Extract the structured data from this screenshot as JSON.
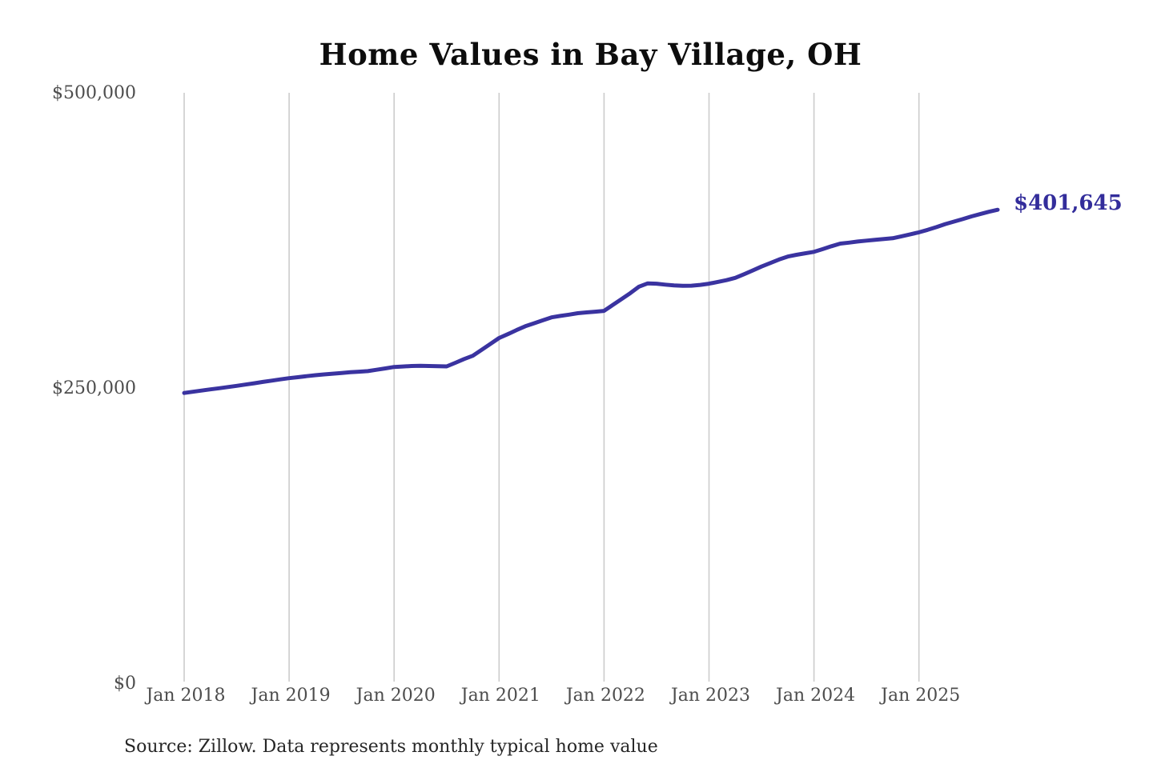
{
  "chart": {
    "title": "Home Values in Bay Village, OH",
    "source": "Source: Zillow. Data represents monthly typical home value",
    "end_label": "$401,645",
    "colors": {
      "line": "#3a33a0",
      "grid": "#cccccc",
      "axis_text": "#4d4d4d",
      "title_text": "#0d0d0d",
      "end_label_text": "#332d9b",
      "background": "#ffffff"
    }
  },
  "chart_data": {
    "type": "line",
    "title": "Home Values in Bay Village, OH",
    "series_name": "Monthly typical home value",
    "unit": "USD",
    "ylim": [
      0,
      500000
    ],
    "grid": "vertical-year-lines-only",
    "legend": "none",
    "last_value": 401645,
    "last_point_label": "$401,645",
    "y_ticks": [
      {
        "value": 0,
        "label": "$0"
      },
      {
        "value": 250000,
        "label": "$250,000"
      },
      {
        "value": 500000,
        "label": "$500,000"
      }
    ],
    "x_ticks": [
      {
        "month_index": 0,
        "label": "Jan 2018"
      },
      {
        "month_index": 12,
        "label": "Jan 2019"
      },
      {
        "month_index": 24,
        "label": "Jan 2020"
      },
      {
        "month_index": 36,
        "label": "Jan 2021"
      },
      {
        "month_index": 48,
        "label": "Jan 2022"
      },
      {
        "month_index": 60,
        "label": "Jan 2023"
      },
      {
        "month_index": 72,
        "label": "Jan 2024"
      },
      {
        "month_index": 84,
        "label": "Jan 2025"
      }
    ],
    "x": [
      "2018-01",
      "2018-02",
      "2018-03",
      "2018-04",
      "2018-05",
      "2018-06",
      "2018-07",
      "2018-08",
      "2018-09",
      "2018-10",
      "2018-11",
      "2018-12",
      "2019-01",
      "2019-02",
      "2019-03",
      "2019-04",
      "2019-05",
      "2019-06",
      "2019-07",
      "2019-08",
      "2019-09",
      "2019-10",
      "2019-11",
      "2019-12",
      "2020-01",
      "2020-02",
      "2020-03",
      "2020-04",
      "2020-05",
      "2020-06",
      "2020-07",
      "2020-08",
      "2020-09",
      "2020-10",
      "2020-11",
      "2020-12",
      "2021-01",
      "2021-02",
      "2021-03",
      "2021-04",
      "2021-05",
      "2021-06",
      "2021-07",
      "2021-08",
      "2021-09",
      "2021-10",
      "2021-11",
      "2021-12",
      "2022-01",
      "2022-02",
      "2022-03",
      "2022-04",
      "2022-05",
      "2022-06",
      "2022-07",
      "2022-08",
      "2022-09",
      "2022-10",
      "2022-11",
      "2022-12",
      "2023-01",
      "2023-02",
      "2023-03",
      "2023-04",
      "2023-05",
      "2023-06",
      "2023-07",
      "2023-08",
      "2023-09",
      "2023-10",
      "2023-11",
      "2023-12",
      "2024-01",
      "2024-02",
      "2024-03",
      "2024-04",
      "2024-05",
      "2024-06",
      "2024-07",
      "2024-08",
      "2024-09",
      "2024-10",
      "2024-11",
      "2024-12",
      "2025-01",
      "2025-02",
      "2025-03",
      "2025-04",
      "2025-05",
      "2025-06",
      "2025-07",
      "2025-08",
      "2025-09",
      "2025-10"
    ],
    "values": [
      246500,
      247500,
      248500,
      249500,
      250500,
      251500,
      252500,
      253600,
      254700,
      255800,
      256900,
      258000,
      259000,
      259800,
      260700,
      261500,
      262200,
      262800,
      263400,
      264000,
      264500,
      265000,
      266100,
      267300,
      268500,
      268900,
      269300,
      269500,
      269300,
      269100,
      269000,
      272000,
      275200,
      278000,
      283000,
      288000,
      293000,
      296300,
      299700,
      303000,
      305500,
      308000,
      310500,
      311700,
      312800,
      314000,
      314700,
      315300,
      316000,
      321000,
      326000,
      331000,
      336500,
      339300,
      339000,
      338200,
      337500,
      337200,
      337300,
      338000,
      339000,
      340500,
      342000,
      344000,
      347000,
      350200,
      353500,
      356500,
      359500,
      362000,
      363500,
      364800,
      366000,
      368300,
      370700,
      373000,
      373800,
      374700,
      375500,
      376200,
      376800,
      377500,
      379100,
      380800,
      382500,
      384600,
      386900,
      389500,
      391600,
      393700,
      396000,
      398000,
      399900,
      401645
    ]
  }
}
